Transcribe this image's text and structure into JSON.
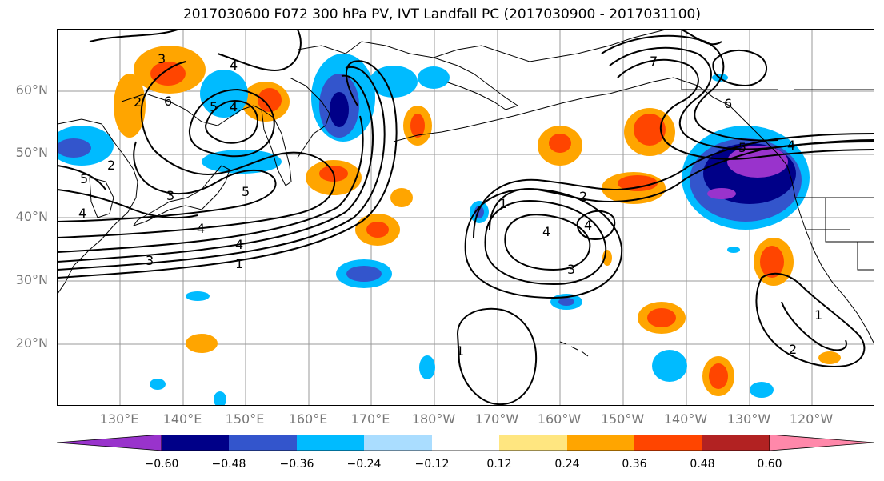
{
  "title": "2017030600 F072 300 hPa PV, IVT Landfall PC (2017030900 - 2017031100)",
  "lat_labels": [
    "60°N",
    "50°N",
    "40°N",
    "30°N",
    "20°N"
  ],
  "lon_labels": [
    "130°E",
    "140°E",
    "150°E",
    "160°E",
    "170°E",
    "180°W",
    "170°W",
    "160°W",
    "150°W",
    "140°W",
    "130°W",
    "120°W"
  ],
  "colorbar": {
    "ticks": [
      "−0.60",
      "−0.48",
      "−0.36",
      "−0.24",
      "−0.12",
      "0.12",
      "0.24",
      "0.36",
      "0.48",
      "0.60"
    ],
    "colors": [
      "#9933cc",
      "#000088",
      "#3355cc",
      "#00bbff",
      "#aaddff",
      "#ffffff",
      "#ffe680",
      "#ffa500",
      "#ff4500",
      "#b22222",
      "#ff88aa"
    ]
  },
  "colors": {
    "grid": "#999999",
    "coast": "#000000",
    "contour": "#000000"
  },
  "contour_labels": [
    "3",
    "2",
    "2",
    "6",
    "5",
    "4",
    "4",
    "5",
    "5",
    "3",
    "4",
    "4",
    "3",
    "4",
    "1",
    "1",
    "2",
    "4",
    "4",
    "3",
    "7",
    "6",
    "5",
    "4",
    "1",
    "2",
    "1"
  ]
}
